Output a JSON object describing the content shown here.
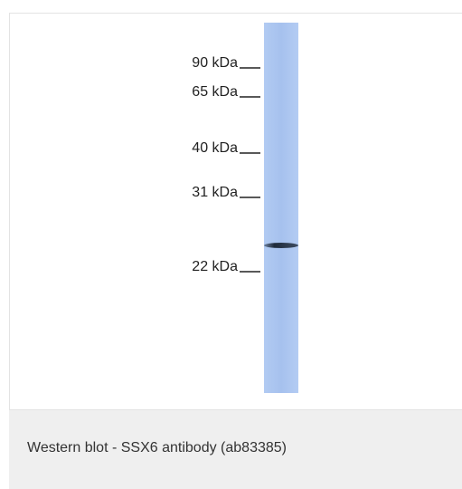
{
  "blot": {
    "markers": [
      "90 kDa",
      "65 kDa",
      "40 kDa",
      "31 kDa",
      "22 kDa"
    ]
  },
  "caption": "Western blot - SSX6 antibody (ab83385)"
}
